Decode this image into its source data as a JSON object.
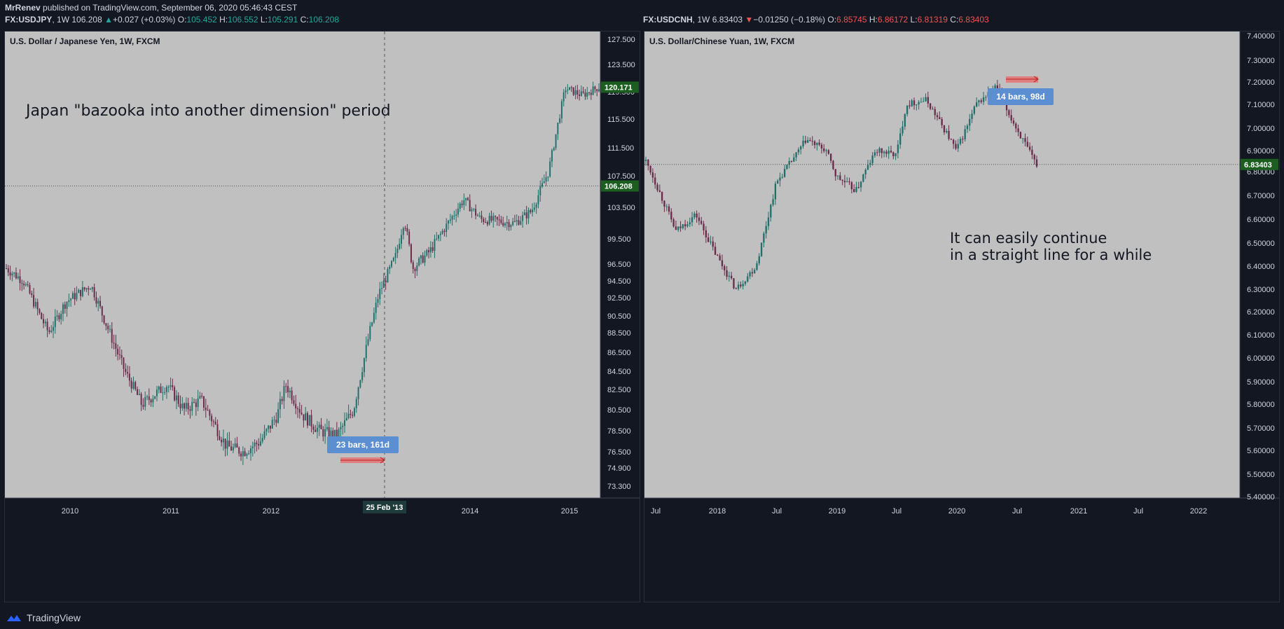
{
  "header": {
    "author": "MrRenev",
    "published": "published on TradingView.com, September 06, 2020 05:46:43 CEST",
    "left": {
      "symbol": "FX:USDJPY",
      "interval": "1W",
      "price": "106.208",
      "arrow": "▲",
      "change": "+0.027 (+0.03%)",
      "o_label": "O:",
      "o": "105.452",
      "h_label": "H:",
      "h": "106.552",
      "l_label": "L:",
      "l": "105.291",
      "c_label": "C:",
      "c": "106.208"
    },
    "right": {
      "symbol": "FX:USDCNH",
      "interval": "1W",
      "price": "6.83403",
      "arrow": "▼",
      "change": "−0.01250 (−0.18%)",
      "o_label": "O:",
      "o": "6.85745",
      "h_label": "H:",
      "h": "6.86172",
      "l_label": "L:",
      "l": "6.81319",
      "c_label": "C:",
      "c": "6.83403"
    }
  },
  "footer": {
    "brand": "TradingView"
  },
  "colors": {
    "background": "#131722",
    "plot": "#c0c0c0",
    "up_candle": "#1f6f6a",
    "down_candle": "#6a2a4a",
    "price_label": "#1b5e20",
    "measure_box": "#5b8fd1",
    "measure_arrow": "#e57373",
    "axis_text": "#d1d4dc"
  },
  "chart_data": [
    {
      "type": "candlestick",
      "title": "U.S. Dollar / Japanese Yen, 1W, FXCM",
      "y_ticks": [
        "127.500",
        "123.500",
        "119.500",
        "115.500",
        "111.500",
        "107.500",
        "103.500",
        "99.500",
        "96.500",
        "94.500",
        "92.500",
        "90.500",
        "88.500",
        "86.500",
        "84.500",
        "82.500",
        "80.500",
        "78.500",
        "76.500",
        "74.900",
        "73.300"
      ],
      "x_ticks": [
        "2010",
        "2011",
        "2012",
        "2014",
        "2015"
      ],
      "last_price": "120.171",
      "current_price": "106.208",
      "crosshair_label": "25 Feb '13",
      "measure_label": "23 bars, 161d",
      "annotation": "Japan \"bazooka into another dimension\" period",
      "price_path": [
        [
          "2009-06",
          96.0
        ],
        [
          "2009-08",
          94.5
        ],
        [
          "2009-11",
          88.5
        ],
        [
          "2010-01",
          92.0
        ],
        [
          "2010-04",
          94.0
        ],
        [
          "2010-06",
          89.0
        ],
        [
          "2010-08",
          84.5
        ],
        [
          "2010-10",
          81.0
        ],
        [
          "2011-01",
          83.0
        ],
        [
          "2011-03",
          80.5
        ],
        [
          "2011-05",
          81.5
        ],
        [
          "2011-08",
          77.0
        ],
        [
          "2011-10",
          76.5
        ],
        [
          "2011-12",
          77.5
        ],
        [
          "2012-02",
          80.0
        ],
        [
          "2012-03",
          83.0
        ],
        [
          "2012-05",
          80.0
        ],
        [
          "2012-07",
          78.5
        ],
        [
          "2012-09",
          78.0
        ],
        [
          "2012-11",
          80.5
        ],
        [
          "2013-01",
          89.0
        ],
        [
          "2013-02",
          93.0
        ],
        [
          "2013-04",
          97.5
        ],
        [
          "2013-05",
          102.0
        ],
        [
          "2013-06",
          96.0
        ],
        [
          "2013-08",
          98.0
        ],
        [
          "2013-12",
          104.5
        ],
        [
          "2014-02",
          102.0
        ],
        [
          "2014-06",
          101.5
        ],
        [
          "2014-08",
          103.0
        ],
        [
          "2014-10",
          108.0
        ],
        [
          "2014-12",
          120.0
        ],
        [
          "2015-02",
          119.0
        ],
        [
          "2015-04",
          120.2
        ]
      ]
    },
    {
      "type": "candlestick",
      "title": "U.S. Dollar/Chinese Yuan, 1W, FXCM",
      "y_ticks": [
        "7.40000",
        "7.30000",
        "7.20000",
        "7.10000",
        "7.00000",
        "6.90000",
        "6.80000",
        "6.70000",
        "6.60000",
        "6.50000",
        "6.40000",
        "6.30000",
        "6.20000",
        "6.10000",
        "6.00000",
        "5.90000",
        "5.80000",
        "5.70000",
        "5.60000",
        "5.50000",
        "5.40000"
      ],
      "x_ticks": [
        "Jul",
        "2018",
        "Jul",
        "2019",
        "Jul",
        "2020",
        "Jul",
        "2021",
        "Jul",
        "2022"
      ],
      "current_price": "6.83403",
      "measure_label": "14 bars, 98d",
      "annotation_lines": [
        "It can easily continue",
        "in a straight line for a while"
      ],
      "price_path": [
        [
          "2017-06",
          6.85
        ],
        [
          "2017-09",
          6.55
        ],
        [
          "2017-11",
          6.62
        ],
        [
          "2018-01",
          6.45
        ],
        [
          "2018-03",
          6.3
        ],
        [
          "2018-05",
          6.4
        ],
        [
          "2018-07",
          6.75
        ],
        [
          "2018-09",
          6.88
        ],
        [
          "2018-10",
          6.95
        ],
        [
          "2018-12",
          6.9
        ],
        [
          "2019-01",
          6.78
        ],
        [
          "2019-03",
          6.72
        ],
        [
          "2019-05",
          6.9
        ],
        [
          "2019-07",
          6.88
        ],
        [
          "2019-08",
          7.1
        ],
        [
          "2019-10",
          7.12
        ],
        [
          "2019-12",
          6.98
        ],
        [
          "2020-01",
          6.9
        ],
        [
          "2020-03",
          7.1
        ],
        [
          "2020-05",
          7.18
        ],
        [
          "2020-06",
          7.08
        ],
        [
          "2020-07",
          7.0
        ],
        [
          "2020-09",
          6.834
        ]
      ]
    }
  ]
}
